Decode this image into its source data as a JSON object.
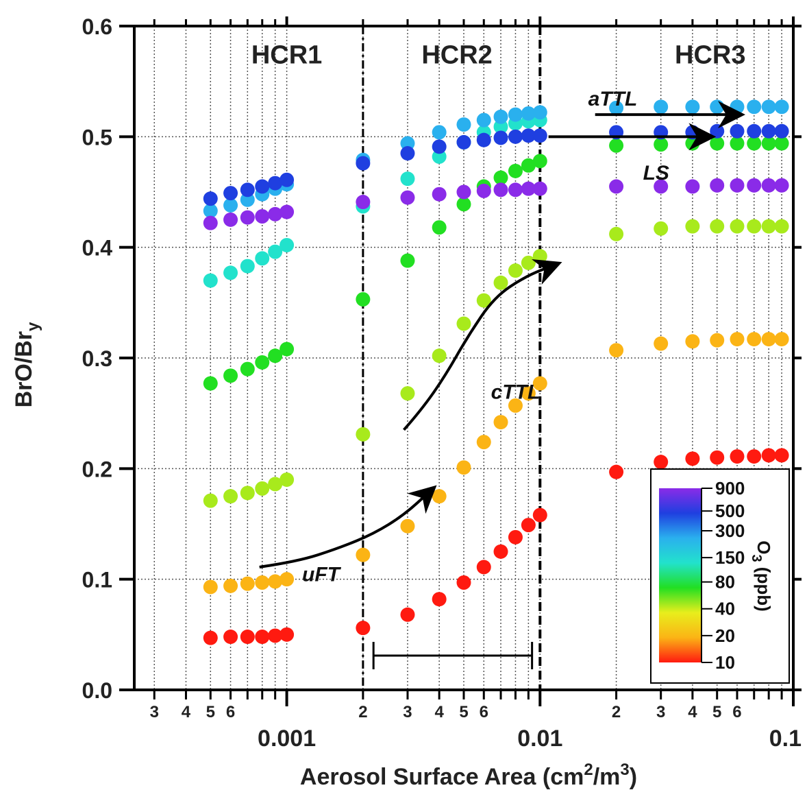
{
  "chart_data": {
    "type": "scatter",
    "xlabel_main": "Aerosol Surface Area (cm",
    "xlabel_sup1": "2",
    "xlabel_mid": "/m",
    "xlabel_sup2": "3",
    "xlabel_end": ")",
    "ylabel_main": "BrO/Br",
    "ylabel_sub": "y",
    "x_scale": "log",
    "xlim": [
      0.00025,
      0.1
    ],
    "ylim": [
      0,
      0.6
    ],
    "grid": "dotted",
    "y_ticks": [
      {
        "v": 0.0,
        "label": "0.0"
      },
      {
        "v": 0.1,
        "label": "0.1"
      },
      {
        "v": 0.2,
        "label": "0.2"
      },
      {
        "v": 0.3,
        "label": "0.3"
      },
      {
        "v": 0.4,
        "label": "0.4"
      },
      {
        "v": 0.5,
        "label": "0.5"
      },
      {
        "v": 0.6,
        "label": "0.6"
      }
    ],
    "x_major_ticks": [
      {
        "v": 0.001,
        "label": "0.001"
      },
      {
        "v": 0.01,
        "label": "0.01"
      },
      {
        "v": 0.1,
        "label": "0.1"
      }
    ],
    "x_minor_ticks": [
      {
        "v": 0.0003,
        "label": "3"
      },
      {
        "v": 0.0004,
        "label": "4"
      },
      {
        "v": 0.0005,
        "label": "5"
      },
      {
        "v": 0.0006,
        "label": "6"
      },
      {
        "v": 0.002,
        "label": "2"
      },
      {
        "v": 0.003,
        "label": "3"
      },
      {
        "v": 0.004,
        "label": "4"
      },
      {
        "v": 0.005,
        "label": "5"
      },
      {
        "v": 0.006,
        "label": "6"
      },
      {
        "v": 0.02,
        "label": "2"
      },
      {
        "v": 0.03,
        "label": "3"
      },
      {
        "v": 0.04,
        "label": "4"
      },
      {
        "v": 0.05,
        "label": "5"
      },
      {
        "v": 0.06,
        "label": "6"
      }
    ],
    "x_minor_unlabeled": [
      0.0007,
      0.0008,
      0.0009,
      0.007,
      0.008,
      0.009,
      0.07,
      0.08,
      0.09
    ],
    "region_dividers": [
      0.002,
      0.01
    ],
    "regions": [
      {
        "label": "HCR1",
        "x": 0.001,
        "y": 0.575
      },
      {
        "label": "HCR2",
        "x": 0.0047,
        "y": 0.575
      },
      {
        "label": "HCR3",
        "x": 0.047,
        "y": 0.575
      }
    ],
    "series": [
      {
        "o3": 10,
        "color": "#ff1a10",
        "x": [
          0.0005,
          0.0006,
          0.0007,
          0.0008,
          0.0009,
          0.001,
          0.002,
          0.003,
          0.004,
          0.005,
          0.006,
          0.007,
          0.008,
          0.009,
          0.01,
          0.02,
          0.03,
          0.04,
          0.05,
          0.06,
          0.07,
          0.08,
          0.09
        ],
        "y": [
          0.047,
          0.048,
          0.048,
          0.048,
          0.049,
          0.05,
          0.056,
          0.068,
          0.082,
          0.097,
          0.111,
          0.125,
          0.138,
          0.149,
          0.158,
          0.197,
          0.206,
          0.209,
          0.21,
          0.211,
          0.211,
          0.212,
          0.212
        ]
      },
      {
        "o3": 20,
        "color": "#fbb415",
        "x": [
          0.0005,
          0.0006,
          0.0007,
          0.0008,
          0.0009,
          0.001,
          0.002,
          0.003,
          0.004,
          0.005,
          0.006,
          0.007,
          0.008,
          0.009,
          0.01,
          0.02,
          0.03,
          0.04,
          0.05,
          0.06,
          0.07,
          0.08,
          0.09
        ],
        "y": [
          0.093,
          0.094,
          0.096,
          0.097,
          0.098,
          0.1,
          0.122,
          0.148,
          0.175,
          0.201,
          0.224,
          0.242,
          0.257,
          0.268,
          0.277,
          0.307,
          0.313,
          0.315,
          0.316,
          0.317,
          0.317,
          0.317,
          0.317
        ]
      },
      {
        "o3": 40,
        "color": "#a8ea1c",
        "x": [
          0.0005,
          0.0006,
          0.0007,
          0.0008,
          0.0009,
          0.001,
          0.002,
          0.003,
          0.004,
          0.005,
          0.006,
          0.007,
          0.008,
          0.009,
          0.01,
          0.02,
          0.03,
          0.04,
          0.05,
          0.06,
          0.07,
          0.08,
          0.09
        ],
        "y": [
          0.171,
          0.175,
          0.178,
          0.182,
          0.186,
          0.19,
          0.231,
          0.268,
          0.302,
          0.331,
          0.352,
          0.368,
          0.379,
          0.386,
          0.392,
          0.412,
          0.417,
          0.419,
          0.419,
          0.419,
          0.419,
          0.419,
          0.419
        ]
      },
      {
        "o3": 80,
        "color": "#22df22",
        "x": [
          0.0005,
          0.0006,
          0.0007,
          0.0008,
          0.0009,
          0.001,
          0.002,
          0.003,
          0.004,
          0.005,
          0.006,
          0.007,
          0.008,
          0.009,
          0.01,
          0.02,
          0.03,
          0.04,
          0.05,
          0.06,
          0.07,
          0.08,
          0.09
        ],
        "y": [
          0.277,
          0.284,
          0.29,
          0.296,
          0.302,
          0.308,
          0.353,
          0.388,
          0.418,
          0.439,
          0.455,
          0.463,
          0.469,
          0.474,
          0.478,
          0.492,
          0.493,
          0.494,
          0.494,
          0.494,
          0.494,
          0.494,
          0.494
        ]
      },
      {
        "o3": 150,
        "color": "#22e2cc",
        "x": [
          0.0005,
          0.0006,
          0.0007,
          0.0008,
          0.0009,
          0.001,
          0.002,
          0.003,
          0.004,
          0.005,
          0.006,
          0.007,
          0.008,
          0.009,
          0.01
        ],
        "y": [
          0.37,
          0.377,
          0.383,
          0.39,
          0.396,
          0.402,
          0.437,
          0.462,
          0.482,
          0.495,
          0.504,
          0.509,
          0.512,
          0.514,
          0.515
        ]
      },
      {
        "o3": 300,
        "color": "#2ab0ee",
        "x": [
          0.0005,
          0.0006,
          0.0007,
          0.0008,
          0.0009,
          0.001,
          0.002,
          0.003,
          0.004,
          0.005,
          0.006,
          0.007,
          0.008,
          0.009,
          0.01,
          0.02,
          0.03,
          0.04,
          0.05,
          0.06,
          0.07,
          0.08,
          0.09
        ],
        "y": [
          0.433,
          0.438,
          0.443,
          0.448,
          0.453,
          0.457,
          0.479,
          0.494,
          0.504,
          0.511,
          0.515,
          0.518,
          0.52,
          0.521,
          0.522,
          0.526,
          0.527,
          0.527,
          0.527,
          0.527,
          0.527,
          0.527,
          0.527
        ]
      },
      {
        "o3": 500,
        "color": "#1f3fe0",
        "x": [
          0.0005,
          0.0006,
          0.0007,
          0.0008,
          0.0009,
          0.001,
          0.002,
          0.003,
          0.004,
          0.005,
          0.006,
          0.007,
          0.008,
          0.009,
          0.01,
          0.02,
          0.03,
          0.04,
          0.05,
          0.06,
          0.07,
          0.08,
          0.09
        ],
        "y": [
          0.444,
          0.449,
          0.452,
          0.455,
          0.458,
          0.461,
          0.476,
          0.485,
          0.491,
          0.495,
          0.497,
          0.499,
          0.5,
          0.501,
          0.501,
          0.504,
          0.504,
          0.504,
          0.505,
          0.505,
          0.505,
          0.505,
          0.505
        ]
      },
      {
        "o3": 900,
        "color": "#8a2be8",
        "x": [
          0.0005,
          0.0006,
          0.0007,
          0.0008,
          0.0009,
          0.001,
          0.002,
          0.003,
          0.004,
          0.005,
          0.006,
          0.007,
          0.008,
          0.009,
          0.01,
          0.02,
          0.03,
          0.04,
          0.05,
          0.06,
          0.07,
          0.08,
          0.09
        ],
        "y": [
          0.422,
          0.425,
          0.427,
          0.428,
          0.43,
          0.432,
          0.441,
          0.445,
          0.448,
          0.45,
          0.451,
          0.452,
          0.452,
          0.453,
          0.453,
          0.455,
          0.455,
          0.455,
          0.456,
          0.456,
          0.456,
          0.456,
          0.456
        ]
      }
    ],
    "annotations": [
      {
        "label": "uFT",
        "x": 0.00115,
        "y": 0.105
      },
      {
        "label": "cTTL",
        "x": 0.0064,
        "y": 0.27
      },
      {
        "label": "aTTL",
        "x": 0.0155,
        "y": 0.535
      },
      {
        "label": "LS",
        "x": 0.0255,
        "y": 0.468
      }
    ],
    "arrows": [
      {
        "name": "uft-arrow",
        "points": [
          [
            0.00078,
            0.111
          ],
          [
            0.0011,
            0.116
          ],
          [
            0.0016,
            0.128
          ],
          [
            0.0022,
            0.141
          ],
          [
            0.0029,
            0.158
          ],
          [
            0.0037,
            0.18
          ]
        ]
      },
      {
        "name": "cttl-arrow",
        "points": [
          [
            0.0029,
            0.235
          ],
          [
            0.0034,
            0.253
          ],
          [
            0.0042,
            0.283
          ],
          [
            0.0052,
            0.32
          ],
          [
            0.0066,
            0.355
          ],
          [
            0.0088,
            0.374
          ],
          [
            0.0114,
            0.384
          ]
        ]
      },
      {
        "name": "attl-arrow",
        "points": [
          [
            0.0165,
            0.52
          ],
          [
            0.06,
            0.52
          ]
        ]
      },
      {
        "name": "ls-arrow",
        "points": [
          [
            0.0108,
            0.5
          ],
          [
            0.046,
            0.5
          ]
        ]
      }
    ],
    "scale_bar": {
      "x1": 0.0022,
      "x2": 0.0093,
      "y": 0.031
    },
    "colorbar": {
      "title_main": "O",
      "title_sub": "3",
      "title_end": " (ppb)",
      "scale": "log",
      "min": 10,
      "max": 900,
      "ticks": [
        {
          "v": 900,
          "label": "900"
        },
        {
          "v": 500,
          "label": "500"
        },
        {
          "v": 300,
          "label": "300"
        },
        {
          "v": 150,
          "label": "150"
        },
        {
          "v": 80,
          "label": "80"
        },
        {
          "v": 40,
          "label": "40"
        },
        {
          "v": 20,
          "label": "20"
        },
        {
          "v": 10,
          "label": "10"
        }
      ],
      "gradient": [
        "#ff1a10",
        "#fbb415",
        "#e8ee1c",
        "#22df22",
        "#22e2cc",
        "#2ab0ee",
        "#1f3fe0",
        "#8a2be8"
      ]
    }
  }
}
